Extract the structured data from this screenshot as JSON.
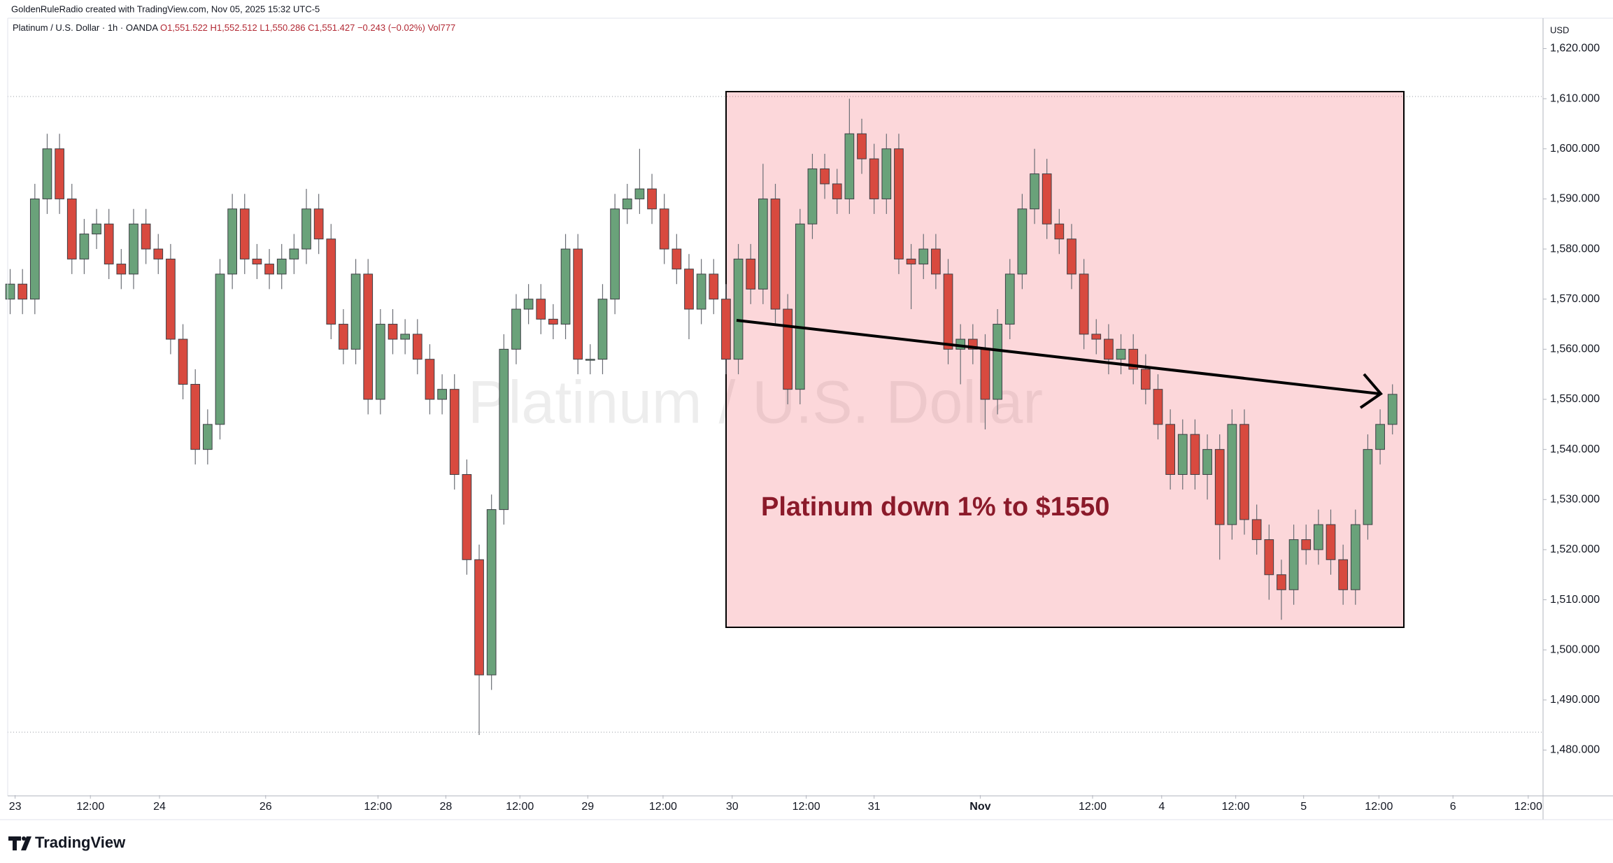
{
  "header": {
    "credit": "GoldenRuleRadio created with TradingView.com, Nov 05, 2025 15:32 UTC-5",
    "symbol": "Platinum / U.S. Dollar · 1h · OANDA",
    "open": "O1,551.522",
    "high": "H1,552.512",
    "low": "L1,550.286",
    "close": "C1,551.427",
    "change": "−0.243 (−0.02%)",
    "volume": "Vol777"
  },
  "logo": "TradingView",
  "chart_data": {
    "type": "candlestick",
    "watermark": "Platinum / U.S. Dollar",
    "currency": "USD",
    "annotation": "Platinum down 1% to $1550",
    "up_color": "#6aa27a",
    "down_color": "#d84a3f",
    "grid": false,
    "open": [
      1570,
      1573,
      1570,
      1590,
      1600,
      1590,
      1578,
      1583,
      1585,
      1577,
      1575,
      1585,
      1580,
      1578,
      1562,
      1553,
      1540,
      1545,
      1575,
      1588,
      1578,
      1577,
      1575,
      1578,
      1580,
      1588,
      1582,
      1565,
      1560,
      1575,
      1550,
      1565,
      1562,
      1563,
      1558,
      1550,
      1552,
      1535,
      1518,
      1495,
      1528,
      1560,
      1568,
      1570,
      1566,
      1565,
      1580,
      1558,
      1558,
      1570,
      1588,
      1590,
      1592,
      1588,
      1580,
      1576,
      1568,
      1575,
      1570,
      1558,
      1578,
      1572,
      1590,
      1568,
      1552,
      1585,
      1596,
      1593,
      1590,
      1603,
      1598,
      1590,
      1600,
      1578,
      1577,
      1580,
      1575,
      1560,
      1562,
      1560,
      1550,
      1565,
      1575,
      1588,
      1595,
      1585,
      1582,
      1575,
      1563,
      1562,
      1558,
      1560,
      1556,
      1552,
      1545,
      1535,
      1543,
      1535,
      1540,
      1525,
      1545,
      1526,
      1522,
      1515,
      1512,
      1522,
      1520,
      1525,
      1518,
      1512,
      1525,
      1540,
      1545
    ],
    "high": [
      1576,
      1576,
      1593,
      1603,
      1603,
      1593,
      1586,
      1588,
      1588,
      1580,
      1588,
      1588,
      1583,
      1581,
      1565,
      1556,
      1548,
      1578,
      1591,
      1591,
      1581,
      1580,
      1581,
      1583,
      1592,
      1591,
      1585,
      1568,
      1578,
      1578,
      1568,
      1568,
      1566,
      1566,
      1561,
      1555,
      1555,
      1538,
      1521,
      1531,
      1563,
      1571,
      1573,
      1573,
      1569,
      1583,
      1583,
      1561,
      1573,
      1591,
      1593,
      1600,
      1595,
      1591,
      1583,
      1579,
      1578,
      1578,
      1573,
      1581,
      1581,
      1597,
      1593,
      1571,
      1588,
      1599,
      1599,
      1596,
      1610,
      1606,
      1601,
      1603,
      1603,
      1581,
      1583,
      1583,
      1578,
      1565,
      1565,
      1563,
      1568,
      1578,
      1591,
      1600,
      1598,
      1588,
      1585,
      1578,
      1566,
      1565,
      1563,
      1563,
      1559,
      1555,
      1548,
      1546,
      1546,
      1543,
      1543,
      1548,
      1548,
      1529,
      1525,
      1518,
      1525,
      1525,
      1528,
      1528,
      1521,
      1528,
      1543,
      1548,
      1553
    ],
    "low": [
      1567,
      1567,
      1567,
      1587,
      1587,
      1575,
      1575,
      1580,
      1574,
      1572,
      1572,
      1577,
      1575,
      1559,
      1550,
      1537,
      1537,
      1542,
      1572,
      1575,
      1574,
      1572,
      1572,
      1575,
      1577,
      1579,
      1562,
      1557,
      1557,
      1547,
      1547,
      1559,
      1559,
      1555,
      1547,
      1547,
      1532,
      1515,
      1483,
      1492,
      1525,
      1557,
      1565,
      1563,
      1562,
      1562,
      1555,
      1555,
      1555,
      1567,
      1585,
      1587,
      1585,
      1577,
      1573,
      1562,
      1565,
      1567,
      1555,
      1555,
      1569,
      1569,
      1565,
      1549,
      1549,
      1582,
      1590,
      1587,
      1587,
      1595,
      1587,
      1587,
      1575,
      1568,
      1574,
      1572,
      1557,
      1553,
      1557,
      1544,
      1547,
      1562,
      1572,
      1585,
      1582,
      1579,
      1572,
      1560,
      1559,
      1555,
      1555,
      1553,
      1549,
      1542,
      1532,
      1532,
      1532,
      1530,
      1518,
      1522,
      1523,
      1519,
      1510,
      1506,
      1509,
      1517,
      1517,
      1515,
      1509,
      1509,
      1522,
      1537,
      1543
    ],
    "close": [
      1573,
      1570,
      1590,
      1600,
      1590,
      1578,
      1583,
      1585,
      1577,
      1575,
      1585,
      1580,
      1578,
      1562,
      1553,
      1540,
      1545,
      1575,
      1588,
      1578,
      1577,
      1575,
      1578,
      1580,
      1588,
      1582,
      1565,
      1560,
      1575,
      1550,
      1565,
      1562,
      1563,
      1558,
      1550,
      1552,
      1535,
      1518,
      1495,
      1528,
      1560,
      1568,
      1570,
      1566,
      1565,
      1580,
      1558,
      1558,
      1570,
      1588,
      1590,
      1592,
      1588,
      1580,
      1576,
      1568,
      1575,
      1570,
      1558,
      1578,
      1572,
      1590,
      1568,
      1552,
      1585,
      1596,
      1593,
      1590,
      1603,
      1598,
      1590,
      1600,
      1578,
      1577,
      1580,
      1575,
      1560,
      1562,
      1560,
      1550,
      1565,
      1575,
      1588,
      1595,
      1585,
      1582,
      1575,
      1563,
      1562,
      1558,
      1560,
      1556,
      1552,
      1545,
      1535,
      1543,
      1535,
      1540,
      1525,
      1545,
      1526,
      1522,
      1515,
      1512,
      1522,
      1520,
      1525,
      1518,
      1512,
      1525,
      1540,
      1545,
      1551
    ],
    "xlim": [
      -0.2,
      124.2
    ],
    "xticks": [
      {
        "value": 0.4,
        "label": "23"
      },
      {
        "value": 6.5,
        "label": "12:00"
      },
      {
        "value": 12.1,
        "label": "24"
      },
      {
        "value": 20.7,
        "label": "26"
      },
      {
        "value": 29.8,
        "label": "12:00"
      },
      {
        "value": 35.3,
        "label": "28"
      },
      {
        "value": 41.3,
        "label": "12:00"
      },
      {
        "value": 46.8,
        "label": "29"
      },
      {
        "value": 52.9,
        "label": "12:00"
      },
      {
        "value": 58.5,
        "label": "30"
      },
      {
        "value": 64.5,
        "label": "12:00"
      },
      {
        "value": 70,
        "label": "31"
      },
      {
        "value": 78.6,
        "label": "Nov"
      },
      {
        "value": 87.7,
        "label": "12:00"
      },
      {
        "value": 93.3,
        "label": "4"
      },
      {
        "value": 99.3,
        "label": "12:00"
      },
      {
        "value": 104.8,
        "label": "5"
      },
      {
        "value": 110.9,
        "label": "12:00"
      },
      {
        "value": 116.9,
        "label": "6"
      },
      {
        "value": 123,
        "label": "12:00"
      }
    ],
    "ylim": [
      1471,
      1626
    ],
    "yticks": [
      {
        "value": 1480,
        "label": "1,480.000"
      },
      {
        "value": 1490,
        "label": "1,490.000"
      },
      {
        "value": 1500,
        "label": "1,500.000"
      },
      {
        "value": 1510,
        "label": "1,510.000"
      },
      {
        "value": 1520,
        "label": "1,520.000"
      },
      {
        "value": 1530,
        "label": "1,530.000"
      },
      {
        "value": 1540,
        "label": "1,540.000"
      },
      {
        "value": 1550,
        "label": "1,550.000"
      },
      {
        "value": 1560,
        "label": "1,560.000"
      },
      {
        "value": 1570,
        "label": "1,570.000"
      },
      {
        "value": 1580,
        "label": "1,580.000"
      },
      {
        "value": 1590,
        "label": "1,590.000"
      },
      {
        "value": 1600,
        "label": "1,600.000"
      },
      {
        "value": 1610,
        "label": "1,610.000"
      },
      {
        "value": 1620,
        "label": "1,620.000"
      }
    ]
  }
}
